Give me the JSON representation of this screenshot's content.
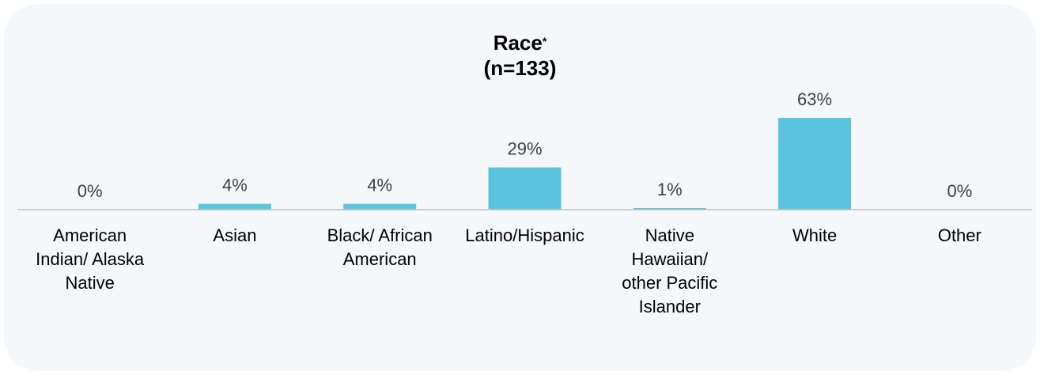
{
  "chart_data": {
    "type": "bar",
    "title": "Race",
    "title_marker": "*",
    "subtitle": "(n=133)",
    "categories": [
      "American Indian/ Alaska Native",
      "Asian",
      "Black/ African American",
      "Latino/Hispanic",
      "Native Hawaiian/ other Pacific Islander",
      "White",
      "Other"
    ],
    "category_lines": [
      [
        "American",
        "Indian/ Alaska",
        "Native"
      ],
      [
        "Asian"
      ],
      [
        "Black/ African",
        "American"
      ],
      [
        "Latino/Hispanic"
      ],
      [
        "Native",
        "Hawaiian/",
        "other Pacific",
        "Islander"
      ],
      [
        "White"
      ],
      [
        "Other"
      ]
    ],
    "values": [
      0,
      4,
      4,
      29,
      1,
      63,
      0
    ],
    "value_labels": [
      "0%",
      "4%",
      "4%",
      "29%",
      "1%",
      "63%",
      "0%"
    ],
    "unit": "%",
    "ylim": [
      0,
      63
    ],
    "grid": false,
    "legend": "none",
    "colors": {
      "bar": "#5bc5e0",
      "baseline": "#bfbfbf",
      "panel": "#f4f8fa",
      "value_text": "#404040",
      "label_text": "#000000"
    }
  }
}
